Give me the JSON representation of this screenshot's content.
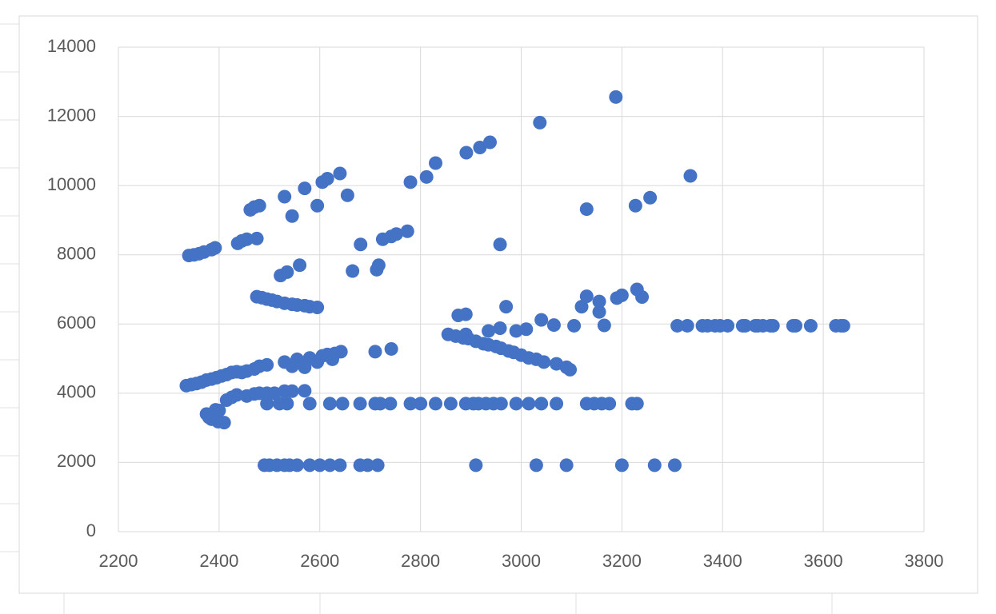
{
  "chart_data": {
    "type": "scatter",
    "color": "#4472c4",
    "grid": true,
    "xlim": [
      2200,
      3800
    ],
    "xticks": [
      2200,
      2400,
      2600,
      2800,
      3000,
      3200,
      3400,
      3600,
      3800
    ],
    "ylim": [
      0,
      14000
    ],
    "yticks": [
      0,
      2000,
      4000,
      6000,
      8000,
      10000,
      12000,
      14000
    ],
    "x": [
      2340,
      2350,
      2360,
      2370,
      2385,
      2392,
      2437,
      2445,
      2455,
      2475,
      2462,
      2470,
      2480,
      2530,
      2545,
      2570,
      2595,
      2605,
      2615,
      2640,
      2655,
      2665,
      2681,
      2713,
      2717,
      2725,
      2742,
      2752,
      2774,
      2780,
      2812,
      2830,
      2891,
      2918,
      2938,
      2958,
      3037,
      3130,
      3188,
      3227,
      3256,
      3336,
      2475,
      2485,
      2495,
      2505,
      2515,
      2530,
      2545,
      2555,
      2570,
      2580,
      2595,
      2522,
      2535,
      2560,
      2335,
      2345,
      2355,
      2365,
      2375,
      2385,
      2395,
      2405,
      2415,
      2425,
      2435,
      2445,
      2455,
      2470,
      2480,
      2495,
      2530,
      2545,
      2555,
      2570,
      2580,
      2595,
      2605,
      2615,
      2630,
      2642,
      2625,
      2710,
      2742,
      2415,
      2425,
      2435,
      2455,
      2470,
      2480,
      2495,
      2510,
      2530,
      2545,
      2570,
      2375,
      2380,
      2385,
      2393,
      2398,
      2410,
      2400,
      2495,
      2520,
      2535,
      2580,
      2620,
      2645,
      2680,
      2710,
      2720,
      2740,
      2780,
      2800,
      2830,
      2860,
      2890,
      2905,
      2915,
      2930,
      2945,
      2960,
      2990,
      3015,
      3040,
      3070,
      3130,
      3145,
      3160,
      3175,
      3220,
      3230,
      2490,
      2500,
      2515,
      2530,
      2540,
      2555,
      2580,
      2600,
      2620,
      2640,
      2680,
      2695,
      2715,
      2910,
      3030,
      3090,
      3200,
      3265,
      3305,
      2855,
      2870,
      2885,
      2895,
      2910,
      2925,
      2935,
      2950,
      2960,
      2975,
      2985,
      3000,
      3015,
      3030,
      3045,
      3070,
      3090,
      3097,
      2875,
      2890,
      2890,
      2935,
      2958,
      2970,
      2990,
      3010,
      3040,
      3065,
      3105,
      3120,
      3130,
      3155,
      3155,
      3165,
      3190,
      3200,
      3230,
      3240,
      3310,
      3330,
      3360,
      3370,
      3385,
      3395,
      3410,
      3440,
      3445,
      3465,
      3470,
      3480,
      3495,
      3500,
      3540,
      3545,
      3575,
      3625,
      3635,
      3640
    ],
    "values": [
      7980,
      8000,
      8030,
      8080,
      8150,
      8200,
      8330,
      8400,
      8450,
      8470,
      9300,
      9380,
      9420,
      9680,
      9120,
      9920,
      9420,
      10100,
      10200,
      10350,
      9720,
      7530,
      8300,
      7570,
      7700,
      8450,
      8530,
      8600,
      8680,
      10100,
      10250,
      10650,
      10950,
      11100,
      11250,
      8300,
      11820,
      9320,
      12560,
      9420,
      9650,
      10280,
      6790,
      6760,
      6720,
      6690,
      6650,
      6600,
      6570,
      6550,
      6530,
      6500,
      6480,
      7400,
      7500,
      7700,
      4220,
      4250,
      4280,
      4320,
      4380,
      4410,
      4450,
      4500,
      4540,
      4600,
      4620,
      4600,
      4640,
      4700,
      4780,
      4820,
      4900,
      4780,
      4980,
      4750,
      5020,
      4900,
      5080,
      5120,
      5150,
      5200,
      4980,
      5200,
      5280,
      3800,
      3880,
      3950,
      3920,
      3980,
      4000,
      4000,
      4000,
      4060,
      4060,
      4070,
      3400,
      3300,
      3250,
      3520,
      3180,
      3150,
      3500,
      3700,
      3700,
      3700,
      3700,
      3700,
      3700,
      3700,
      3700,
      3700,
      3700,
      3700,
      3700,
      3700,
      3700,
      3700,
      3700,
      3700,
      3700,
      3700,
      3700,
      3700,
      3700,
      3700,
      3700,
      3700,
      3700,
      3700,
      3700,
      3700,
      3700,
      1920,
      1920,
      1920,
      1920,
      1920,
      1920,
      1920,
      1920,
      1920,
      1920,
      1920,
      1920,
      1920,
      1920,
      1920,
      1920,
      1920,
      1920,
      1920,
      5700,
      5650,
      5600,
      5580,
      5500,
      5430,
      5400,
      5350,
      5300,
      5220,
      5180,
      5100,
      5020,
      4980,
      4900,
      4850,
      4750,
      4680,
      6250,
      6280,
      5700,
      5800,
      5880,
      6500,
      5800,
      5850,
      6120,
      5970,
      5950,
      6500,
      6800,
      6650,
      6350,
      5960,
      6750,
      6830,
      7000,
      6780,
      5950,
      5950,
      5950,
      5950,
      5950,
      5950,
      5950,
      5950,
      5950,
      5950,
      5950,
      5950,
      5950,
      5950,
      5950,
      5950,
      5950,
      5950,
      5950,
      5950
    ]
  }
}
